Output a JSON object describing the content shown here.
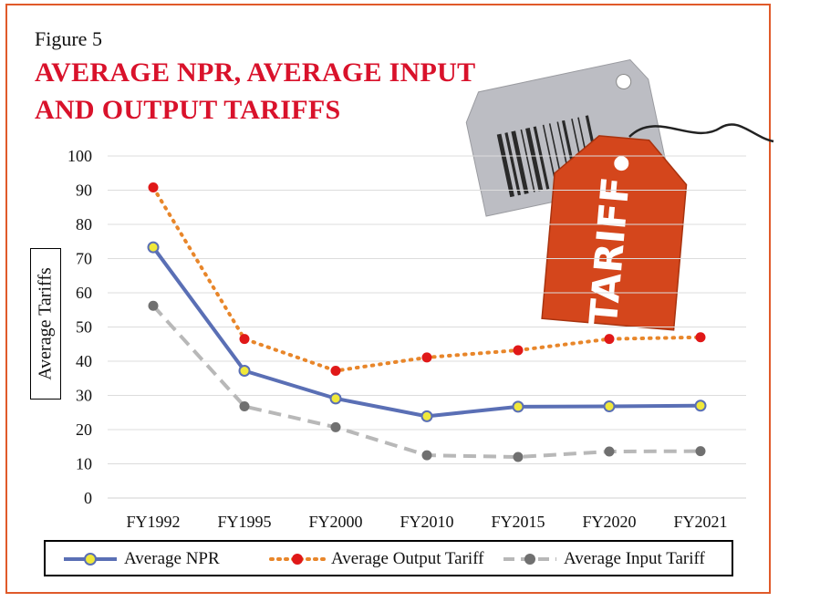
{
  "figure_label": "Figure 5",
  "title_lines": [
    "AVERAGE NPR, AVERAGE INPUT",
    "AND OUTPUT TARIFFS"
  ],
  "decoration": {
    "tag_text": "TARIFF",
    "tag_color": "#d4461c",
    "barcode_tag_color": "#b9bac0"
  },
  "colors": {
    "frame": "#e05a2a",
    "title": "#d9122b"
  },
  "chart_data": {
    "type": "line",
    "categories": [
      "FY1992",
      "FY1995",
      "FY2000",
      "FY2010",
      "FY2015",
      "FY2020",
      "FY2021"
    ],
    "ylabel": "Average Tariffs",
    "ylim": [
      0,
      100
    ],
    "yticks": [
      0,
      10,
      20,
      30,
      40,
      50,
      60,
      70,
      80,
      90,
      100
    ],
    "grid": true,
    "legend_position": "bottom",
    "series": [
      {
        "name": "Average NPR",
        "values": [
          73.3,
          37.2,
          29.1,
          23.9,
          26.7,
          26.8,
          27.0
        ],
        "color": "#5a6fb5",
        "marker": "#f0e83a",
        "style": "solid"
      },
      {
        "name": "Average Output Tariff",
        "values": [
          90.8,
          46.5,
          37.2,
          41.1,
          43.2,
          46.5,
          47.0
        ],
        "color": "#e8862a",
        "marker": "#e01818",
        "style": "dotted"
      },
      {
        "name": "Average Input Tariff",
        "values": [
          56.2,
          26.8,
          20.7,
          12.5,
          12.0,
          13.6,
          13.7
        ],
        "color": "#b8b8b8",
        "marker": "#707070",
        "style": "dashed"
      }
    ]
  }
}
